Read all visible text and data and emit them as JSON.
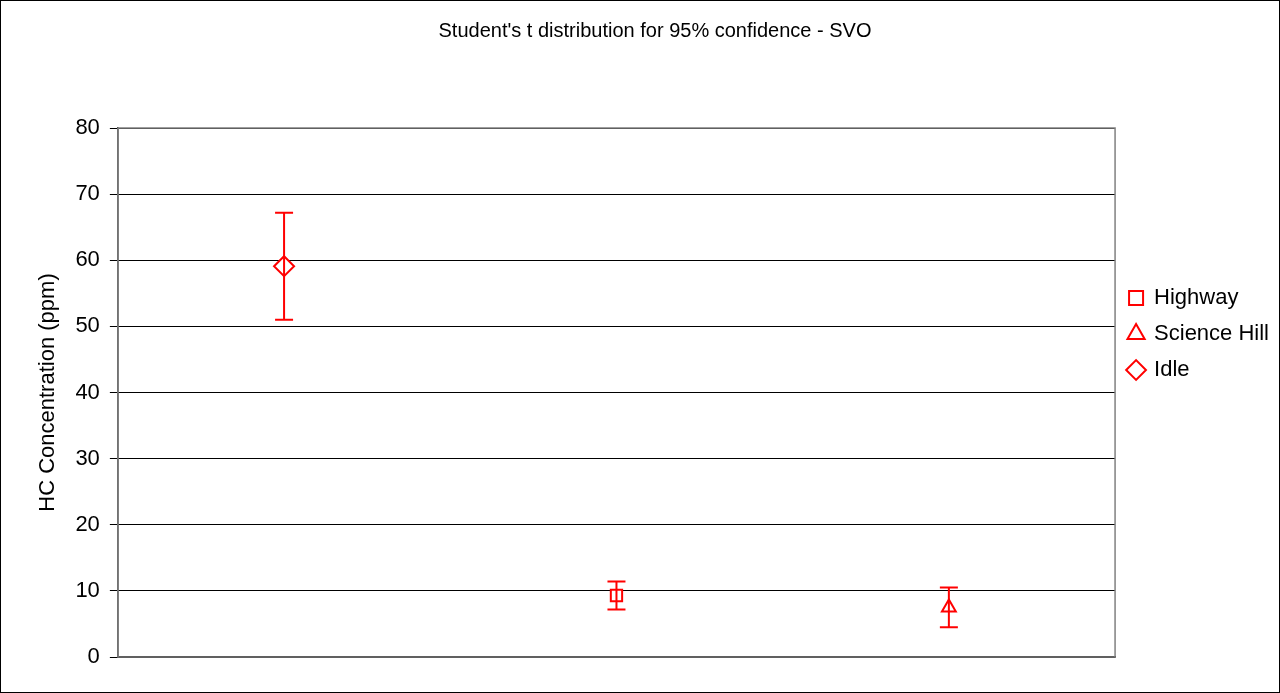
{
  "chart_data": {
    "type": "scatter",
    "title": "Student's t distribution for 95% confidence - SVO",
    "ylabel": "HC Concentration (ppm)",
    "categories": [
      null,
      null,
      null
    ],
    "ylim": [
      0,
      80
    ],
    "yticks": [
      0,
      10,
      20,
      30,
      40,
      50,
      60,
      70,
      80
    ],
    "grid": "y",
    "legend": "right",
    "tick_labels": "y",
    "series": [
      {
        "name": "Highway",
        "color": "#ff0000",
        "marker": "square",
        "values": [
          null,
          9.3,
          null
        ],
        "errors": [
          null,
          2.1,
          null
        ]
      },
      {
        "name": "Science Hill",
        "color": "#ff0000",
        "marker": "triangle",
        "values": [
          null,
          null,
          7.5
        ],
        "errors": [
          null,
          null,
          3.0
        ]
      },
      {
        "name": "Idle",
        "color": "#ff0000",
        "marker": "diamond",
        "values": [
          59.1,
          null,
          null
        ],
        "errors": [
          8.1,
          null,
          null
        ]
      }
    ]
  }
}
